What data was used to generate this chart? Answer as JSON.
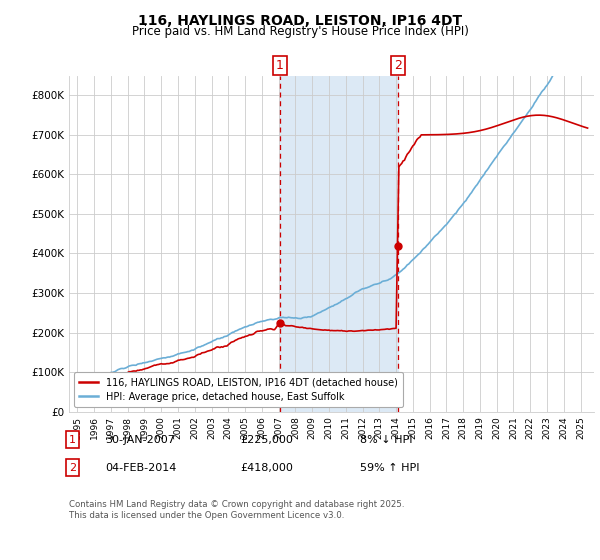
{
  "title": "116, HAYLINGS ROAD, LEISTON, IP16 4DT",
  "subtitle": "Price paid vs. HM Land Registry's House Price Index (HPI)",
  "legend_line1": "116, HAYLINGS ROAD, LEISTON, IP16 4DT (detached house)",
  "legend_line2": "HPI: Average price, detached house, East Suffolk",
  "footnote": "Contains HM Land Registry data © Crown copyright and database right 2025.\nThis data is licensed under the Open Government Licence v3.0.",
  "marker1_label": "1",
  "marker1_date": "30-JAN-2007",
  "marker1_price": "£225,000",
  "marker1_pct": "8% ↓ HPI",
  "marker2_label": "2",
  "marker2_date": "04-FEB-2014",
  "marker2_price": "£418,000",
  "marker2_pct": "59% ↑ HPI",
  "sale1_year": 2007.08,
  "sale1_price": 225000,
  "sale2_year": 2014.09,
  "sale2_price": 418000,
  "ylim": [
    0,
    850000
  ],
  "xlim_start": 1994.5,
  "xlim_end": 2025.8,
  "hpi_color": "#6baed6",
  "price_color": "#cc0000",
  "shade_color": "#dce9f5",
  "grid_color": "#cccccc",
  "background_color": "#ffffff"
}
